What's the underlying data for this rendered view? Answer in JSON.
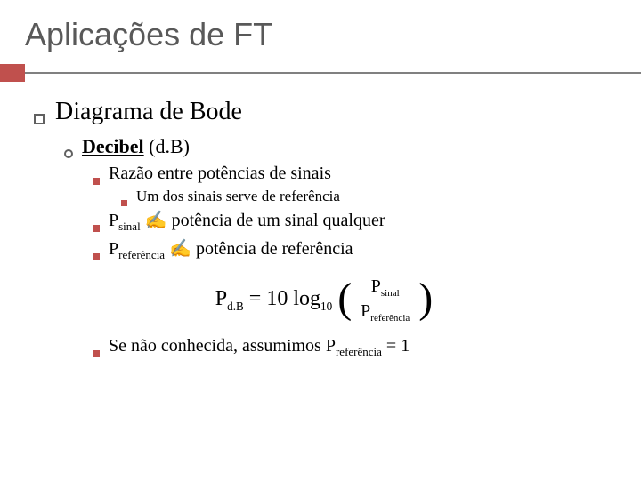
{
  "colors": {
    "accent": "#c0504d",
    "divider": "#808080",
    "title_text": "#595959",
    "body_text": "#000000",
    "background": "#ffffff",
    "bullet_outline": "#606060"
  },
  "typography": {
    "title_family": "Arial",
    "title_size_pt": 36,
    "body_family": "Georgia",
    "l1_size_pt": 28,
    "l2_size_pt": 22,
    "l3_size_pt": 20,
    "l4_size_pt": 17,
    "formula_size_pt": 24
  },
  "slide": {
    "title": "Aplicações de FT",
    "l1": "Diagrama de Bode",
    "l2_decibel_bold": "Decibel",
    "l2_decibel_rest": " (d.B)",
    "l3_razao": "Razão entre potências de sinais",
    "l4_umdos": "Um dos sinais serve de referência",
    "l3_psinal_p": "P",
    "l3_psinal_sub": "sinal",
    "l3_psinal_hand": " ✍ ",
    "l3_psinal_rest": "potência de um sinal qualquer",
    "l3_pref_p": "P",
    "l3_pref_sub": "referência",
    "l3_pref_hand": " ✍ ",
    "l3_pref_rest": "potência de referência",
    "l3_se_pref_1": "Se não conhecida, assumimos P",
    "l3_se_pref_sub": "referência",
    "l3_se_pref_2": " = 1"
  },
  "formula": {
    "lhs_p": "P",
    "lhs_sub": "d.B",
    "eq": " = ",
    "coef": "10 log",
    "logbase": "10",
    "num_p": "P",
    "num_sub": "sinal",
    "den_p": "P",
    "den_sub": "referência"
  }
}
